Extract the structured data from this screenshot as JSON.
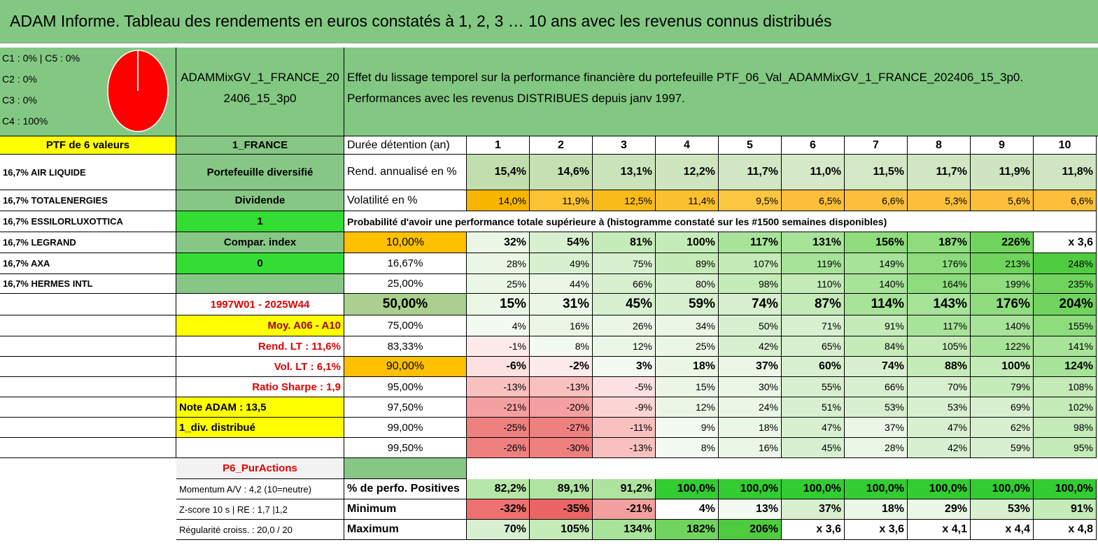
{
  "title": "ADAM Informe. Tableau des rendements en euros constatés à 1, 2, 3 … 10 ans avec les revenus connus distribués",
  "allocation": [
    "C1 : 0% | C5 : 0%",
    "C2 : 0%",
    "C3 : 0%",
    "C4 : 100%"
  ],
  "pie": {
    "type": "pie",
    "values": [
      0,
      0,
      0,
      100,
      0
    ],
    "color": "#ff0000"
  },
  "portfolio_name": "ADAMMixGV_1_FRANCE_202406_15_3p0",
  "description": [
    "Effet du lissage temporel sur la performance financière du portefeuille PTF_06_Val_ADAMMixGV_1_FRANCE_202406_15_3p0.",
    "Performances avec les revenus DISTRIBUES depuis janv 1997."
  ],
  "rows": [
    {
      "a": "PTF de 6 valeurs",
      "b": "1_FRANCE",
      "c": "Durée détention (an)",
      "cells": [
        "1",
        "2",
        "3",
        "4",
        "5",
        "6",
        "7",
        "8",
        "9",
        "10"
      ]
    },
    {
      "a": "16,7% AIR LIQUIDE",
      "b": "Portefeuille diversifié",
      "c": "Rend. annualisé en %",
      "cells": [
        "15,4%",
        "14,6%",
        "13,1%",
        "12,2%",
        "11,7%",
        "11,0%",
        "11,5%",
        "11,7%",
        "11,9%",
        "11,8%"
      ],
      "fills": [
        "#c2deae",
        "#c6e0b3",
        "#cbe3ba",
        "#cfe5c0",
        "#d1e6c3",
        "#d5e8c8",
        "#d2e7c4",
        "#d1e6c3",
        "#cfe5c1",
        "#d0e6c2"
      ]
    },
    {
      "a": "16,7% TOTALENERGIES",
      "b": "Dividende",
      "c": "Volatilité en %",
      "cells": [
        "14,0%",
        "11,9%",
        "12,5%",
        "11,4%",
        "9,5%",
        "6,5%",
        "6,6%",
        "5,3%",
        "5,6%",
        "6,6%"
      ],
      "fills": [
        "#f7b500",
        "#fbc233",
        "#f9bb1a",
        "#fbc02d",
        "#fdc640",
        "#fdbf3a",
        "#fdbf3a",
        "#fdbf3a",
        "#fdbf3a",
        "#fdbf3a"
      ]
    },
    {
      "a": "16,7% ESSILORLUXOTTICA",
      "b": "1",
      "note": "Probabilité d'avoir une performance totale supérieure à (histogramme constaté sur les #1500 semaines disponibles)"
    },
    {
      "a": "16,7% LEGRAND",
      "b": "Compar. index",
      "c": "10,00%",
      "cells": [
        "32%",
        "54%",
        "81%",
        "100%",
        "117%",
        "131%",
        "156%",
        "187%",
        "226%",
        "x 3,6"
      ],
      "fills": [
        "#eaf7e6",
        "#d8f0d0",
        "#c4ebb8",
        "#c4ebb8",
        "#a8e39a",
        "#a8e39a",
        "#8edc7e",
        "#8edc7e",
        "#6fd35e",
        "#ffffff"
      ]
    },
    {
      "a": "16,7% AXA",
      "b": "0",
      "c": "16,67%",
      "cells": [
        "28%",
        "49%",
        "75%",
        "89%",
        "107%",
        "119%",
        "149%",
        "176%",
        "213%",
        "248%"
      ],
      "fills": [
        "#eaf7e6",
        "#d8f0d0",
        "#d8f0d0",
        "#c4ebb8",
        "#c4ebb8",
        "#a8e39a",
        "#a8e39a",
        "#8edc7e",
        "#6fd35e",
        "#4fcb40"
      ]
    },
    {
      "a": "16,7% HERMES INTL",
      "c": "25,00%",
      "cells": [
        "25%",
        "44%",
        "66%",
        "80%",
        "98%",
        "110%",
        "140%",
        "164%",
        "199%",
        "235%"
      ],
      "fills": [
        "#eaf7e6",
        "#eaf7e6",
        "#d8f0d0",
        "#d8f0d0",
        "#c4ebb8",
        "#c4ebb8",
        "#a8e39a",
        "#8edc7e",
        "#8edc7e",
        "#6fd35e"
      ]
    },
    {
      "b": "1997W01 - 2025W44",
      "c": "50,00%",
      "cells": [
        "15%",
        "31%",
        "45%",
        "59%",
        "74%",
        "87%",
        "114%",
        "143%",
        "176%",
        "204%"
      ],
      "fills": [
        "#eaf7e6",
        "#eaf7e6",
        "#d8f0d0",
        "#d8f0d0",
        "#d8f0d0",
        "#c4ebb8",
        "#a8e39a",
        "#a8e39a",
        "#8edc7e",
        "#6fd35e"
      ]
    },
    {
      "b": "Moy. A06 - A10",
      "c": "75,00%",
      "cells": [
        "4%",
        "16%",
        "26%",
        "34%",
        "50%",
        "71%",
        "91%",
        "117%",
        "140%",
        "155%"
      ],
      "fills": [
        "#f3faf1",
        "#eaf7e6",
        "#eaf7e6",
        "#eaf7e6",
        "#d8f0d0",
        "#d8f0d0",
        "#c4ebb8",
        "#a8e39a",
        "#a8e39a",
        "#8edc7e"
      ]
    },
    {
      "b": "Rend. LT : 11,6%",
      "c": "83,33%",
      "cells": [
        "-1%",
        "8%",
        "12%",
        "25%",
        "42%",
        "65%",
        "84%",
        "105%",
        "122%",
        "141%"
      ],
      "fills": [
        "#fdeaea",
        "#f3faf1",
        "#eaf7e6",
        "#eaf7e6",
        "#d8f0d0",
        "#d8f0d0",
        "#c4ebb8",
        "#c4ebb8",
        "#a8e39a",
        "#a8e39a"
      ]
    },
    {
      "b": "Vol. LT : 6,1%",
      "c": "90,00%",
      "cells": [
        "-6%",
        "-2%",
        "3%",
        "18%",
        "37%",
        "60%",
        "74%",
        "88%",
        "100%",
        "124%"
      ],
      "fills": [
        "#fde0e0",
        "#fdeaea",
        "#f3faf1",
        "#eaf7e6",
        "#eaf7e6",
        "#d8f0d0",
        "#d8f0d0",
        "#c4ebb8",
        "#c4ebb8",
        "#a8e39a"
      ]
    },
    {
      "b": "Ratio Sharpe : 1,9",
      "c": "95,00%",
      "cells": [
        "-13%",
        "-13%",
        "-5%",
        "15%",
        "30%",
        "55%",
        "66%",
        "70%",
        "79%",
        "108%"
      ],
      "fills": [
        "#f9c0c0",
        "#f9c0c0",
        "#fde0e0",
        "#eaf7e6",
        "#eaf7e6",
        "#d8f0d0",
        "#d8f0d0",
        "#d8f0d0",
        "#c4ebb8",
        "#c4ebb8"
      ]
    },
    {
      "b": "Note ADAM : 13,5",
      "c": "97,50%",
      "cells": [
        "-21%",
        "-20%",
        "-9%",
        "12%",
        "24%",
        "51%",
        "53%",
        "53%",
        "69%",
        "102%"
      ],
      "fills": [
        "#f4a0a0",
        "#f4a0a0",
        "#fdd4d4",
        "#eaf7e6",
        "#eaf7e6",
        "#d8f0d0",
        "#d8f0d0",
        "#d8f0d0",
        "#d8f0d0",
        "#c4ebb8"
      ]
    },
    {
      "b": "1_div. distribué",
      "c": "99,00%",
      "cells": [
        "-25%",
        "-27%",
        "-11%",
        "9%",
        "18%",
        "47%",
        "37%",
        "47%",
        "62%",
        "98%"
      ],
      "fills": [
        "#ee8080",
        "#ee8080",
        "#f9c0c0",
        "#f3faf1",
        "#eaf7e6",
        "#d8f0d0",
        "#eaf7e6",
        "#d8f0d0",
        "#d8f0d0",
        "#c4ebb8"
      ]
    },
    {
      "c": "99,50%",
      "cells": [
        "-26%",
        "-30%",
        "-13%",
        "8%",
        "16%",
        "45%",
        "28%",
        "42%",
        "59%",
        "95%"
      ],
      "fills": [
        "#ee8080",
        "#ee8080",
        "#f9c0c0",
        "#f3faf1",
        "#eaf7e6",
        "#d8f0d0",
        "#eaf7e6",
        "#d8f0d0",
        "#d8f0d0",
        "#c4ebb8"
      ]
    },
    {
      "b": "P6_PurActions"
    },
    {
      "b": "Momentum A/V : 4,2 (10=neutre)",
      "c": "% de perfo. Positives",
      "cells": [
        "82,2%",
        "89,1%",
        "91,2%",
        "100,0%",
        "100,0%",
        "100,0%",
        "100,0%",
        "100,0%",
        "100,0%",
        "100,0%"
      ],
      "fills": [
        "#b6e6a8",
        "#b0e4a1",
        "#aee39f",
        "#33cc33",
        "#33cc33",
        "#33cc33",
        "#33cc33",
        "#33cc33",
        "#33cc33",
        "#33cc33"
      ]
    },
    {
      "b": "Z-score 10 s | RE : 1,7 |1,2",
      "c": "Minimum",
      "cells": [
        "-32%",
        "-35%",
        "-21%",
        "4%",
        "13%",
        "37%",
        "18%",
        "29%",
        "53%",
        "91%"
      ],
      "fills": [
        "#ee7070",
        "#ec6565",
        "#f4a0a0",
        "#ffffff",
        "#f3faf1",
        "#d8f0d0",
        "#eaf7e6",
        "#eaf7e6",
        "#d8f0d0",
        "#c4ebb8"
      ]
    },
    {
      "b": "Régularité croiss. : 20,0 / 20",
      "c": "Maximum",
      "cells": [
        "70%",
        "105%",
        "134%",
        "182%",
        "206%",
        "x 3,6",
        "x 3,6",
        "x 4,1",
        "x 4,4",
        "x 4,8"
      ],
      "fills": [
        "#d8f0d0",
        "#c4ebb8",
        "#a8e39a",
        "#6fd35e",
        "#4fcb40",
        "#ffffff",
        "#ffffff",
        "#ffffff",
        "#ffffff",
        "#ffffff"
      ]
    }
  ]
}
